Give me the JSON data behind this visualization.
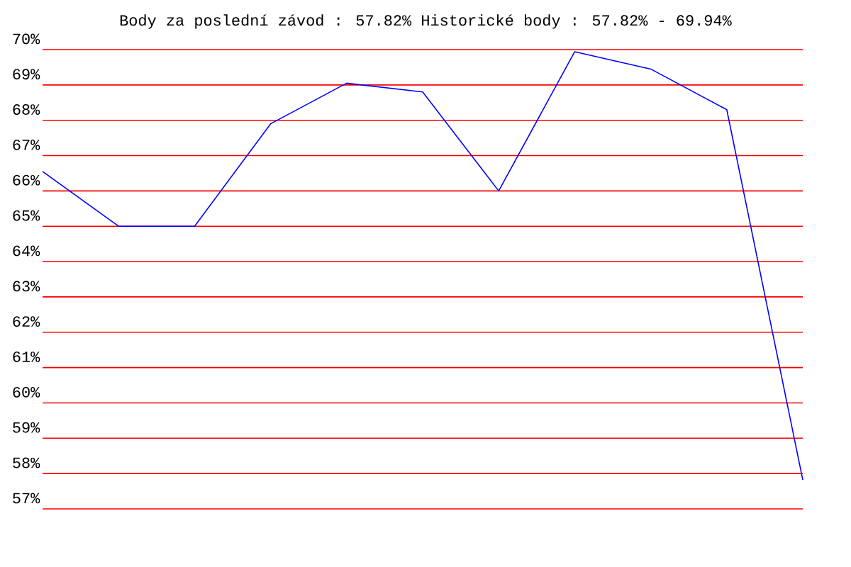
{
  "chart_data": {
    "type": "line",
    "title": "Body za poslední závod : 57.82%  Historické body : 57.82% - 69.94%",
    "categories": [
      null,
      null,
      null,
      null,
      null,
      null,
      null,
      null,
      null,
      null,
      null
    ],
    "series": [
      {
        "color": "#0000ff",
        "values": [
          66.55,
          65.0,
          65.0,
          67.9,
          69.05,
          68.8,
          66.0,
          69.94,
          69.45,
          68.3,
          57.82
        ]
      }
    ],
    "ylim": [
      57,
      70
    ],
    "yticks": [
      {
        "value": 57,
        "label": "57%"
      },
      {
        "value": 58,
        "label": "58%"
      },
      {
        "value": 59,
        "label": "59%"
      },
      {
        "value": 60,
        "label": "60%"
      },
      {
        "value": 61,
        "label": "61%"
      },
      {
        "value": 62,
        "label": "62%"
      },
      {
        "value": 63,
        "label": "63%"
      },
      {
        "value": 64,
        "label": "64%"
      },
      {
        "value": 65,
        "label": "65%"
      },
      {
        "value": 66,
        "label": "66%"
      },
      {
        "value": 67,
        "label": "67%"
      },
      {
        "value": 68,
        "label": "68%"
      },
      {
        "value": 69,
        "label": "69%"
      },
      {
        "value": 70,
        "label": "70%"
      }
    ],
    "grid": "y",
    "marker": "none",
    "line_style": "solid"
  }
}
